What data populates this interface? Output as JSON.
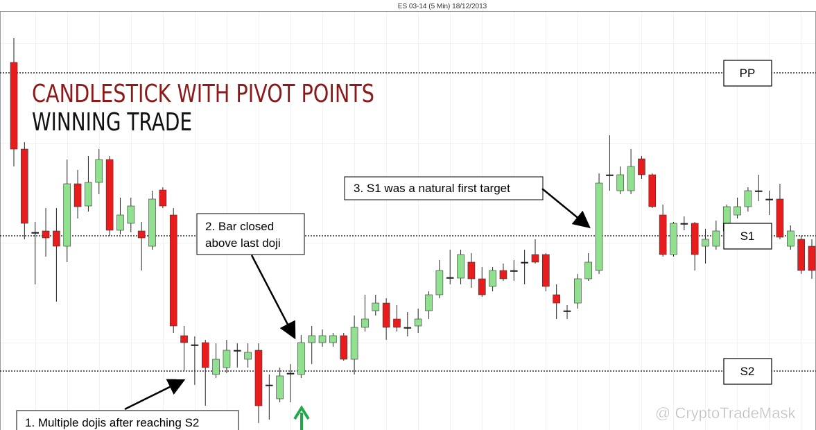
{
  "chart_data": {
    "type": "candlestick",
    "title": "ES 03-14 (5 Min)  18/12/2013",
    "headline": [
      "CANDLESTICK WITH PIVOT POINTS",
      "WINNING TRADE"
    ],
    "up_color": "#90e090",
    "down_color": "#e81c1c",
    "ylim": [
      0,
      620
    ],
    "open": [
      530,
      405,
      285,
      287,
      287,
      265,
      355,
      323,
      357,
      390,
      288,
      298,
      287,
      265,
      346,
      310,
      136,
      123,
      126,
      80,
      90,
      115,
      102,
      115,
      65,
      45,
      82,
      80,
      126,
      126,
      126,
      136,
      102,
      148,
      172,
      183,
      160,
      148,
      150,
      172,
      195,
      220,
      219,
      242,
      218,
      207,
      230,
      230,
      242,
      253,
      253,
      195,
      172,
      183,
      218,
      230,
      368,
      345,
      345,
      391,
      368,
      310,
      253,
      298,
      298,
      265,
      265,
      287,
      310,
      322,
      345,
      333,
      333,
      265,
      275,
      265
    ],
    "high": [
      565,
      415,
      300,
      320,
      320,
      390,
      375,
      395,
      405,
      395,
      335,
      335,
      300,
      345,
      350,
      320,
      150,
      135,
      130,
      125,
      130,
      125,
      125,
      125,
      80,
      90,
      95,
      137,
      150,
      145,
      140,
      140,
      165,
      195,
      195,
      190,
      180,
      170,
      175,
      200,
      245,
      260,
      260,
      255,
      235,
      235,
      240,
      245,
      260,
      275,
      255,
      210,
      180,
      225,
      255,
      370,
      425,
      380,
      405,
      395,
      370,
      325,
      300,
      308,
      300,
      290,
      302,
      325,
      335,
      350,
      368,
      345,
      355,
      295,
      280,
      275
    ],
    "low": [
      380,
      275,
      210,
      250,
      185,
      242,
      305,
      315,
      340,
      280,
      282,
      285,
      230,
      260,
      320,
      140,
      85,
      65,
      35,
      75,
      82,
      90,
      90,
      10,
      15,
      40,
      40,
      75,
      95,
      120,
      120,
      100,
      80,
      142,
      165,
      130,
      142,
      135,
      140,
      160,
      190,
      210,
      210,
      205,
      192,
      200,
      215,
      215,
      210,
      240,
      200,
      160,
      160,
      175,
      215,
      225,
      345,
      340,
      340,
      362,
      320,
      250,
      250,
      288,
      230,
      240,
      260,
      280,
      305,
      315,
      330,
      310,
      275,
      260,
      225,
      218
    ],
    "close": [
      405,
      298,
      285,
      277,
      265,
      355,
      322,
      357,
      390,
      288,
      310,
      323,
      277,
      333,
      323,
      150,
      126,
      123,
      90,
      102,
      115,
      115,
      112,
      35,
      65,
      78,
      82,
      126,
      136,
      136,
      136,
      102,
      148,
      160,
      183,
      148,
      148,
      148,
      160,
      195,
      230,
      220,
      253,
      218,
      195,
      230,
      218,
      230,
      242,
      242,
      207,
      183,
      172,
      218,
      242,
      356,
      368,
      368,
      380,
      368,
      322,
      253,
      298,
      298,
      253,
      275,
      287,
      322,
      322,
      345,
      345,
      333,
      278,
      287,
      230,
      230
    ],
    "pivots": [
      {
        "label": "PP",
        "value": 515
      },
      {
        "label": "S1",
        "value": 280
      },
      {
        "label": "S2",
        "value": 85
      }
    ],
    "annotations": [
      {
        "lines": [
          "3. S1 was a natural first target"
        ]
      },
      {
        "lines": [
          "2. Bar closed",
          "above last doji"
        ]
      },
      {
        "lines": [
          "1. Multiple  dojis after reaching S2"
        ]
      }
    ],
    "watermark": "@ CryptoTradeMask"
  }
}
